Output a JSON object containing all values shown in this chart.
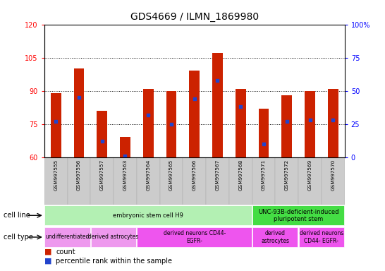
{
  "title": "GDS4669 / ILMN_1869980",
  "samples": [
    "GSM997555",
    "GSM997556",
    "GSM997557",
    "GSM997563",
    "GSM997564",
    "GSM997565",
    "GSM997566",
    "GSM997567",
    "GSM997568",
    "GSM997571",
    "GSM997572",
    "GSM997569",
    "GSM997570"
  ],
  "count_values": [
    89,
    100,
    81,
    69,
    91,
    90,
    99,
    107,
    91,
    82,
    88,
    90,
    91
  ],
  "percentile_values": [
    27,
    45,
    12,
    1,
    32,
    25,
    44,
    58,
    38,
    10,
    27,
    28,
    28
  ],
  "ylim_left": [
    60,
    120
  ],
  "ylim_right": [
    0,
    100
  ],
  "yticks_left": [
    60,
    75,
    90,
    105,
    120
  ],
  "yticks_right": [
    0,
    25,
    50,
    75,
    100
  ],
  "ytick_labels_left": [
    "60",
    "75",
    "90",
    "105",
    "120"
  ],
  "ytick_labels_right": [
    "0",
    "25",
    "50",
    "75",
    "100%"
  ],
  "bar_color": "#cc2200",
  "dot_color": "#2244cc",
  "cell_line_groups": [
    {
      "label": "embryonic stem cell H9",
      "start": 0,
      "end": 9,
      "color": "#b3f0b3"
    },
    {
      "label": "UNC-93B-deficient-induced\npluripotent stem",
      "start": 9,
      "end": 13,
      "color": "#44dd44"
    }
  ],
  "cell_type_groups": [
    {
      "label": "undifferentiated",
      "start": 0,
      "end": 2,
      "color": "#ee99ee"
    },
    {
      "label": "derived astrocytes",
      "start": 2,
      "end": 4,
      "color": "#ee99ee"
    },
    {
      "label": "derived neurons CD44-\nEGFR-",
      "start": 4,
      "end": 9,
      "color": "#ee55ee"
    },
    {
      "label": "derived\nastrocytes",
      "start": 9,
      "end": 11,
      "color": "#ee55ee"
    },
    {
      "label": "derived neurons\nCD44- EGFR-",
      "start": 11,
      "end": 13,
      "color": "#ee55ee"
    }
  ],
  "legend_count_color": "#cc2200",
  "legend_dot_color": "#2244cc",
  "legend_count_label": "count",
  "legend_dot_label": "percentile rank within the sample"
}
